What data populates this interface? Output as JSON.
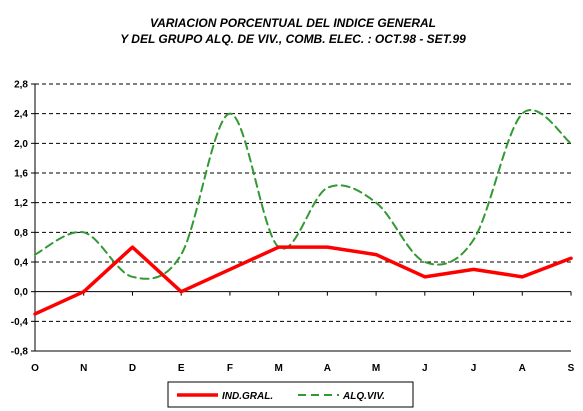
{
  "chart_data": {
    "type": "line",
    "title_lines": [
      "VARIACION PORCENTUAL DEL INDICE GENERAL",
      "Y DEL GRUPO ALQ. DE VIV., COMB.  ELEC. : OCT.98 - SET.99"
    ],
    "categories": [
      "O",
      "N",
      "D",
      "E",
      "F",
      "M",
      "A",
      "M",
      "J",
      "J",
      "A",
      "S"
    ],
    "ylim": [
      -0.8,
      2.8
    ],
    "ytick_values": [
      -0.8,
      -0.4,
      0.0,
      0.4,
      0.8,
      1.2,
      1.6,
      2.0,
      2.4,
      2.8
    ],
    "ytick_labels": [
      "-0,8",
      "-0,4",
      "0,0",
      "0,4",
      "0,8",
      "1,2",
      "1,6",
      "2,0",
      "2,4",
      "2,8"
    ],
    "grid": "dashed horizontal",
    "legend_position": "bottom",
    "series": [
      {
        "name": "IND.GRAL.",
        "values": [
          -0.3,
          0.0,
          0.6,
          0.0,
          0.3,
          0.6,
          0.6,
          0.5,
          0.2,
          0.3,
          0.2,
          0.45
        ],
        "color": "#ff0000",
        "style": "solid",
        "smooth": false
      },
      {
        "name": "ALQ.VIV.",
        "values": [
          0.5,
          0.8,
          0.2,
          0.5,
          2.4,
          0.6,
          1.4,
          1.2,
          0.4,
          0.7,
          2.4,
          2.0
        ],
        "color": "#339933",
        "style": "dashed",
        "smooth": true
      }
    ]
  }
}
